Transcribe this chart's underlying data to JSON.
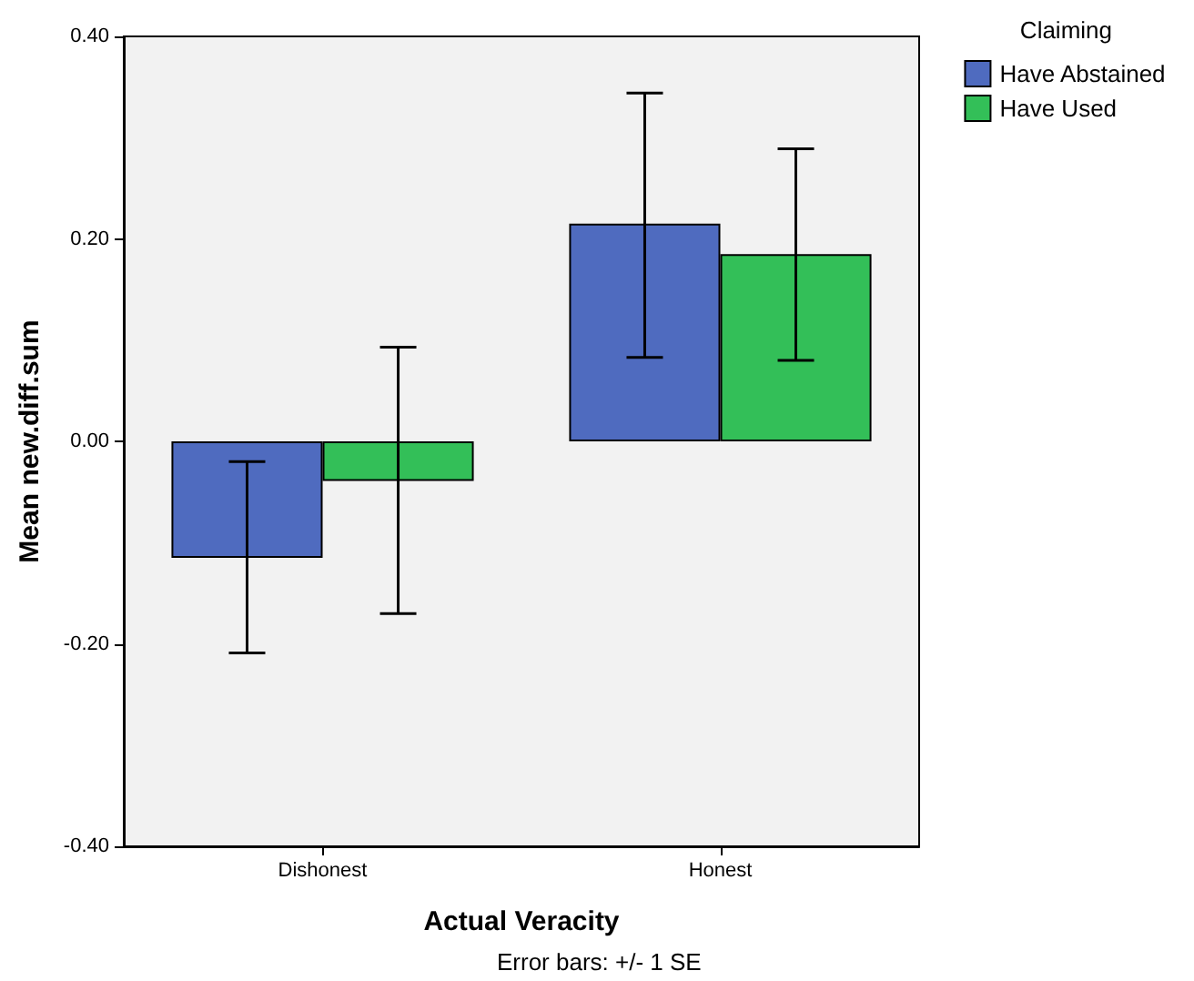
{
  "chart_data": {
    "type": "bar",
    "categories": [
      "Dishonest",
      "Honest"
    ],
    "series": [
      {
        "name": "Have Abstained",
        "color": "#4f6bbf",
        "values": [
          -0.115,
          0.215
        ],
        "errors": [
          [
            -0.209,
            -0.02
          ],
          [
            0.083,
            0.344
          ]
        ]
      },
      {
        "name": "Have Used",
        "color": "#33bf58",
        "values": [
          -0.039,
          0.185
        ],
        "errors": [
          [
            -0.17,
            0.093
          ],
          [
            0.08,
            0.289
          ]
        ]
      }
    ],
    "ylim": [
      -0.4,
      0.4
    ],
    "yticks": [
      {
        "value": -0.4,
        "label": "-0.40"
      },
      {
        "value": -0.2,
        "label": "-0.20"
      },
      {
        "value": 0,
        "label": "0.00"
      },
      {
        "value": 0.2,
        "label": "0.20"
      },
      {
        "value": 0.4,
        "label": "0.40"
      }
    ],
    "xlabel": "Actual Veracity",
    "ylabel": "Mean new.diff.sum",
    "legend_title": "Claiming",
    "legend": "top right",
    "grid": false,
    "annotations": [
      "Error bars: +/- 1 SE"
    ]
  }
}
